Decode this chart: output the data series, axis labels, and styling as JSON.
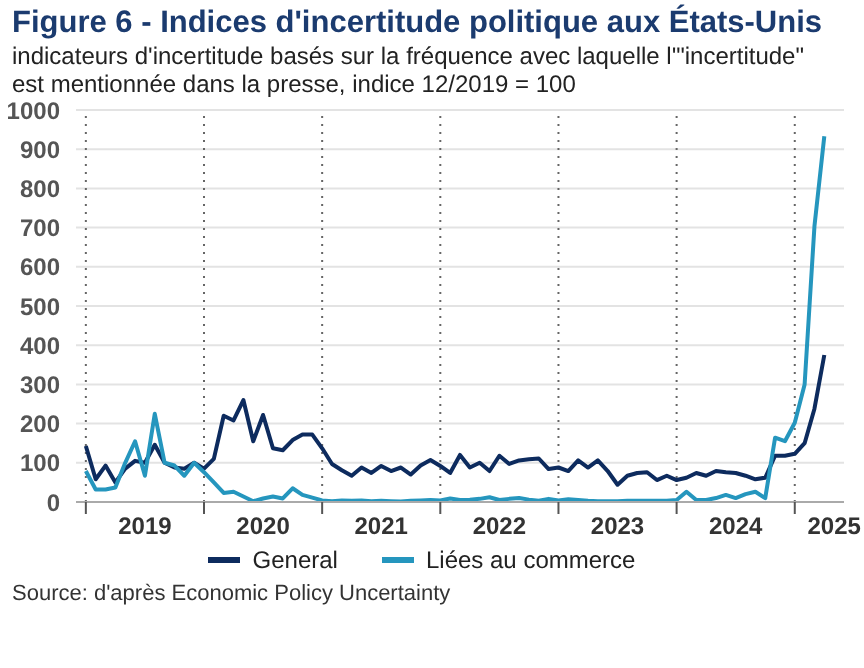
{
  "chart_data": {
    "type": "line",
    "title": "Figure 6 - Indices d'incertitude politique aux États-Unis",
    "subtitle": "indicateurs d'incertitude basés sur la fréquence avec laquelle l'\"incertitude\" est mentionnée dans la presse, indice 12/2019 = 100",
    "x": [
      "2019-01",
      "2019-02",
      "2019-03",
      "2019-04",
      "2019-05",
      "2019-06",
      "2019-07",
      "2019-08",
      "2019-09",
      "2019-10",
      "2019-11",
      "2019-12",
      "2020-01",
      "2020-02",
      "2020-03",
      "2020-04",
      "2020-05",
      "2020-06",
      "2020-07",
      "2020-08",
      "2020-09",
      "2020-10",
      "2020-11",
      "2020-12",
      "2021-01",
      "2021-02",
      "2021-03",
      "2021-04",
      "2021-05",
      "2021-06",
      "2021-07",
      "2021-08",
      "2021-09",
      "2021-10",
      "2021-11",
      "2021-12",
      "2022-01",
      "2022-02",
      "2022-03",
      "2022-04",
      "2022-05",
      "2022-06",
      "2022-07",
      "2022-08",
      "2022-09",
      "2022-10",
      "2022-11",
      "2022-12",
      "2023-01",
      "2023-02",
      "2023-03",
      "2023-04",
      "2023-05",
      "2023-06",
      "2023-07",
      "2023-08",
      "2023-09",
      "2023-10",
      "2023-11",
      "2023-12",
      "2024-01",
      "2024-02",
      "2024-03",
      "2024-04",
      "2024-05",
      "2024-06",
      "2024-07",
      "2024-08",
      "2024-09",
      "2024-10",
      "2024-11",
      "2024-12",
      "2025-01",
      "2025-02",
      "2025-03",
      "2025-04"
    ],
    "series": [
      {
        "name": "General",
        "color": "#0d2b5e",
        "values": [
          143,
          58,
          93,
          50,
          85,
          105,
          100,
          146,
          100,
          88,
          85,
          100,
          85,
          110,
          220,
          208,
          260,
          155,
          222,
          137,
          132,
          158,
          172,
          172,
          137,
          97,
          81,
          67,
          88,
          74,
          92,
          79,
          88,
          70,
          93,
          107,
          92,
          74,
          120,
          88,
          100,
          79,
          118,
          97,
          106,
          109,
          111,
          84,
          88,
          79,
          106,
          88,
          106,
          79,
          44,
          67,
          74,
          76,
          56,
          67,
          56,
          62,
          74,
          67,
          79,
          76,
          74,
          67,
          58,
          62,
          118,
          118,
          123,
          150,
          238,
          375
        ]
      },
      {
        "name": "Liées au commerce",
        "color": "#2596be",
        "values": [
          79,
          32,
          32,
          37,
          100,
          155,
          67,
          225,
          100,
          93,
          67,
          100,
          76,
          50,
          23,
          26,
          14,
          2,
          9,
          14,
          9,
          35,
          18,
          11,
          4,
          2,
          4,
          3,
          4,
          2,
          3,
          2,
          1,
          3,
          4,
          5,
          4,
          9,
          5,
          6,
          8,
          12,
          5,
          8,
          10,
          6,
          3,
          8,
          4,
          7,
          5,
          3,
          2,
          2,
          2,
          3,
          3,
          3,
          3,
          3,
          5,
          26,
          5,
          5,
          10,
          18,
          10,
          20,
          26,
          10,
          164,
          155,
          202,
          300,
          704,
          933
        ]
      }
    ],
    "xlim": [
      "2018-12",
      "2025-06"
    ],
    "xticks": [
      {
        "value": "2019-01",
        "label": null
      },
      {
        "value": "2019-07",
        "label": "2019"
      },
      {
        "value": "2020-01",
        "label": null
      },
      {
        "value": "2020-07",
        "label": "2020"
      },
      {
        "value": "2021-01",
        "label": null
      },
      {
        "value": "2021-07",
        "label": "2021"
      },
      {
        "value": "2022-01",
        "label": null
      },
      {
        "value": "2022-07",
        "label": "2022"
      },
      {
        "value": "2023-01",
        "label": null
      },
      {
        "value": "2023-07",
        "label": "2023"
      },
      {
        "value": "2024-01",
        "label": null
      },
      {
        "value": "2024-07",
        "label": "2024"
      },
      {
        "value": "2025-01",
        "label": null
      },
      {
        "value": "2025-05",
        "label": "2025"
      }
    ],
    "ylim": [
      0,
      1000
    ],
    "yticks": [
      0,
      100,
      200,
      300,
      400,
      500,
      600,
      700,
      800,
      900,
      1000
    ],
    "grid": true,
    "legend": "bottom",
    "marker": "none",
    "line_style": "solid",
    "annotations": [
      "Source: d'après Economic Policy Uncertainty"
    ]
  }
}
